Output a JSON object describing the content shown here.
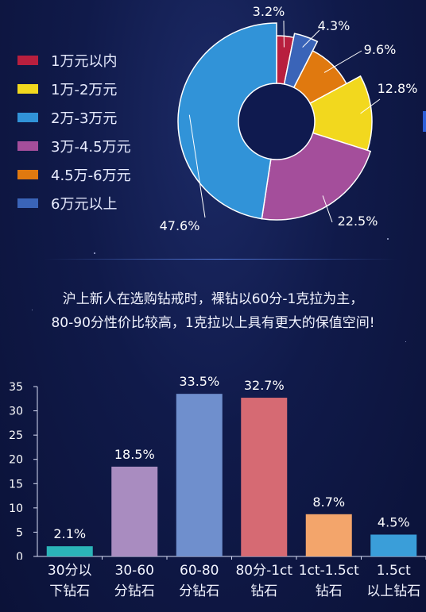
{
  "pie": {
    "chart_data": {
      "type": "pie",
      "slices": [
        {
          "label": "1万元以内",
          "value": 3.2,
          "value_label": "3.2%",
          "color": "#b81f3e"
        },
        {
          "label": "6万元以上",
          "value": 4.3,
          "value_label": "4.3%",
          "color": "#3a64b8"
        },
        {
          "label": "4.5万-6万元",
          "value": 9.6,
          "value_label": "9.6%",
          "color": "#e0790f"
        },
        {
          "label": "1万-2万元",
          "value": 12.8,
          "value_label": "12.8%",
          "color": "#f2d81e"
        },
        {
          "label": "3万-4.5万元",
          "value": 22.5,
          "value_label": "22.5%",
          "color": "#a44e9b"
        },
        {
          "label": "2万-3万元",
          "value": 47.6,
          "value_label": "47.6%",
          "color": "#3193d8"
        }
      ]
    },
    "legend": [
      {
        "label": "1万元以内",
        "color": "#b81f3e"
      },
      {
        "label": "1万-2万元",
        "color": "#f2d81e"
      },
      {
        "label": "2万-3万元",
        "color": "#3193d8"
      },
      {
        "label": "3万-4.5万元",
        "color": "#a44e9b"
      },
      {
        "label": "4.5万-6万元",
        "color": "#e0790f"
      },
      {
        "label": "6万元以上",
        "color": "#3a64b8"
      }
    ]
  },
  "summary": {
    "line1": "沪上新人在选购钻戒时，裸钻以60分-1克拉为主，",
    "line2": "80-90分性价比较高，1克拉以上具有更大的保值空间!"
  },
  "bars": {
    "chart_data": {
      "type": "bar",
      "categories": [
        [
          "30分以",
          "下钻石"
        ],
        [
          "30-60",
          "分钻石"
        ],
        [
          "60-80",
          "分钻石"
        ],
        [
          "80分-1ct",
          "钻石"
        ],
        [
          "1ct-1.5ct",
          "钻石"
        ],
        [
          "1.5ct",
          "以上钻石"
        ]
      ],
      "values": [
        2.1,
        18.5,
        33.5,
        32.7,
        8.7,
        4.5
      ],
      "value_labels": [
        "2.1%",
        "18.5%",
        "33.5%",
        "32.7%",
        "8.7%",
        "4.5%"
      ],
      "colors": [
        "#2bb4b8",
        "#a98cc0",
        "#6f8fcd",
        "#d66a73",
        "#f3a56b",
        "#3a9ed9"
      ],
      "ylim": [
        0,
        35
      ],
      "yticks": [
        "0",
        "5",
        "10",
        "15",
        "20",
        "25",
        "30",
        "35"
      ]
    }
  }
}
